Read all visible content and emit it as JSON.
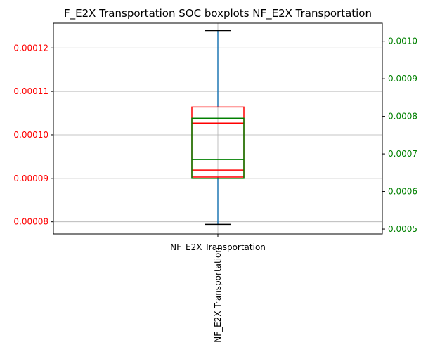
{
  "chart_data": {
    "type": "boxplot",
    "title": "F_E2X Transportation SOC boxplots NF_E2X Transportation",
    "categories": [
      "NF_E2X Transportation"
    ],
    "xlabel": "",
    "grid": true,
    "left_axis": {
      "color": "#ff0000",
      "ylim": [
        7.72e-05,
        0.0001257
      ],
      "ticks": [
        "0.00008",
        "0.00009",
        "0.00010",
        "0.00011",
        "0.00012"
      ],
      "tick_values": [
        8e-05,
        9e-05,
        0.0001,
        0.00011,
        0.00012
      ]
    },
    "right_axis": {
      "color": "#008000",
      "ylim": [
        0.000487,
        0.001048
      ],
      "ticks": [
        "0.0005",
        "0.0006",
        "0.0007",
        "0.0008",
        "0.0009",
        "0.0010"
      ],
      "tick_values": [
        0.0005,
        0.0006,
        0.0007,
        0.0008,
        0.0009,
        0.001
      ]
    },
    "series": [
      {
        "axis": "left",
        "color": "#ff0000",
        "whisker_low": 7.94e-05,
        "q1": 9.03e-05,
        "median": 9.19e-05,
        "mean_line": 0.0001027,
        "q3": 0.0001064,
        "whisker_high": 0.000124,
        "whisker_color": "#1f77b4",
        "cap_color": "#000000"
      },
      {
        "axis": "right",
        "color": "#008000",
        "q1": 0.000635,
        "median": 0.000685,
        "q3": 0.000795
      }
    ]
  }
}
